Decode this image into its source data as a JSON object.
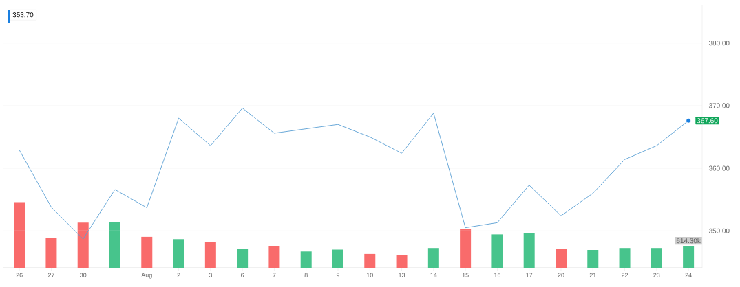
{
  "chart_data": {
    "type": "line",
    "categories": [
      "26",
      "27",
      "30",
      null,
      "Aug",
      "2",
      "3",
      "6",
      "7",
      "8",
      "9",
      "10",
      "13",
      "14",
      "15",
      "16",
      "17",
      "20",
      "21",
      "22",
      "23",
      "24"
    ],
    "series": [
      {
        "type": "bar",
        "axis": "y2",
        "values": [
          1857,
          844,
          1279,
          1300,
          877,
          811,
          723,
          529,
          616,
          461,
          515,
          391,
          350,
          560,
          1087,
          945,
          993,
          527,
          505,
          560,
          560,
          614.3
        ],
        "colors": [
          "#f96b6b",
          "#f96b6b",
          "#f96b6b",
          "#47c48c",
          "#f96b6b",
          "#47c48c",
          "#f96b6b",
          "#47c48c",
          "#f96b6b",
          "#47c48c",
          "#47c48c",
          "#f96b6b",
          "#f96b6b",
          "#47c48c",
          "#f96b6b",
          "#47c48c",
          "#47c48c",
          "#f96b6b",
          "#47c48c",
          "#47c48c",
          "#47c48c",
          "#47c48c"
        ],
        "value_labels": [
          null,
          null,
          null,
          null,
          null,
          null,
          null,
          null,
          null,
          null,
          null,
          null,
          null,
          null,
          null,
          null,
          null,
          null,
          null,
          null,
          null,
          "614.30k"
        ]
      },
      {
        "color": "#5a9fd4",
        "values": [
          362.9,
          353.8,
          348.7,
          356.6,
          353.7,
          368.0,
          363.6,
          369.6,
          365.6,
          366.3,
          367.0,
          365.0,
          362.4,
          368.8,
          350.5,
          351.3,
          357.3,
          352.4,
          356.0,
          361.4,
          363.6,
          367.6
        ]
      },
      {
        "type": "scatter",
        "x": [
          "24"
        ],
        "values": [
          367.6
        ],
        "color": "#1a7fe0",
        "value_labels": [
          "367.60"
        ]
      }
    ],
    "ylim": [
      344.1,
      386
    ],
    "yticks": [
      {
        "value": 350,
        "label": "350.00"
      },
      {
        "value": 360,
        "label": "360.00"
      },
      {
        "value": 370,
        "label": "370.00"
      },
      {
        "value": 380,
        "label": "380.00"
      }
    ],
    "y2lim": [
      0,
      7426
    ],
    "grid": "y",
    "annotations": [
      "353.70"
    ]
  }
}
